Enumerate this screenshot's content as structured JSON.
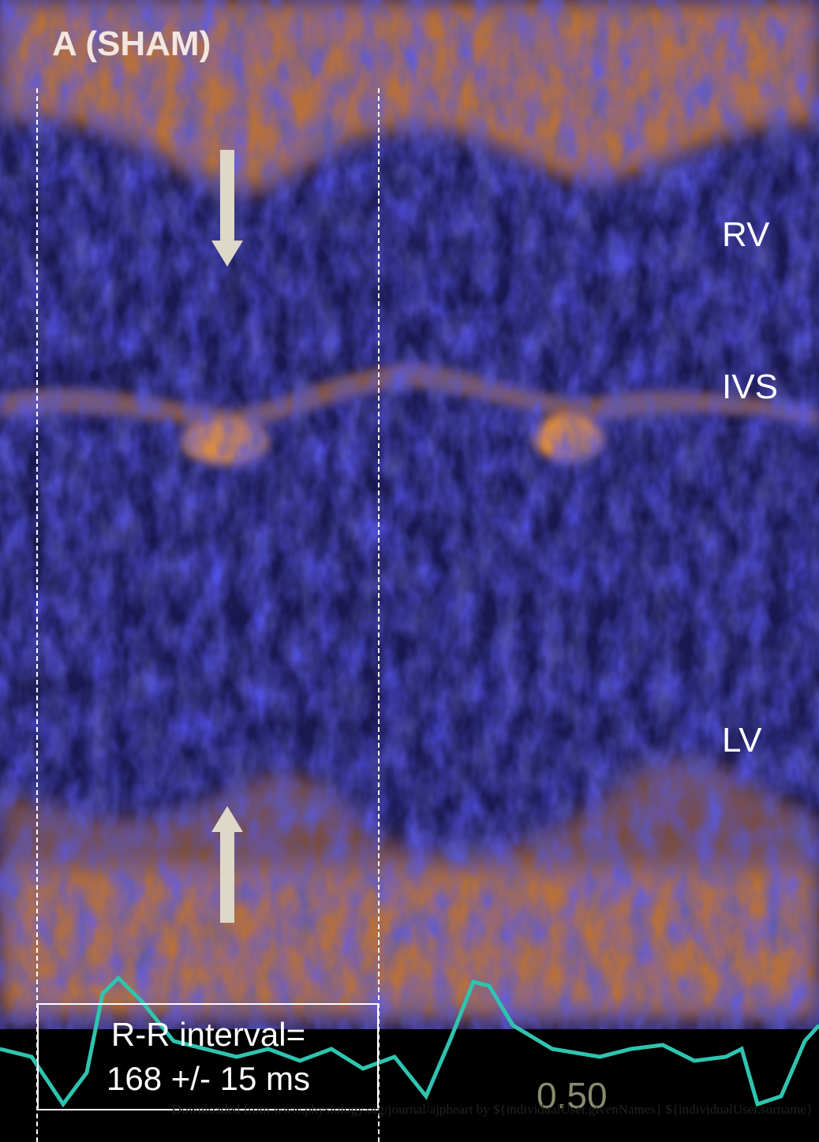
{
  "figure": {
    "title": "A (SHAM)",
    "labels": [
      "RV",
      "IVS",
      "LV"
    ],
    "box": {
      "line1": "R-R interval=",
      "line2": "168 +/- 15 ms"
    },
    "scale_label": "0.50",
    "watermark": "Downloaded from www.physiology.org/journal/ajpheart by ${individualUser.givenNames} ${individualUser.surname}"
  }
}
